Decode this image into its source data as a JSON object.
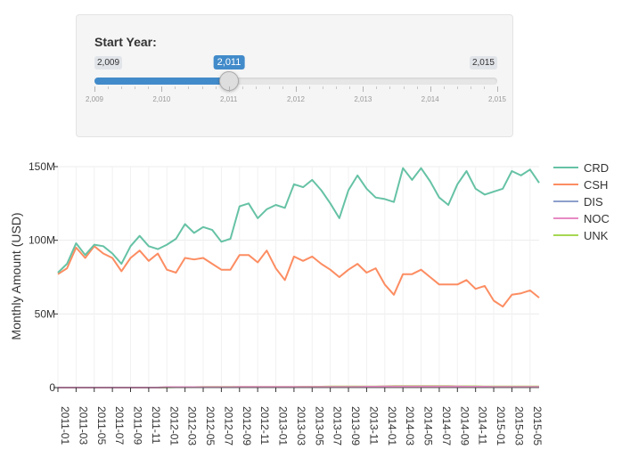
{
  "slider": {
    "label": "Start Year:",
    "min": 2009,
    "max": 2015,
    "value": 2011,
    "min_label": "2,009",
    "max_label": "2,015",
    "value_label": "2,011",
    "tick_labels": [
      "2,009",
      "2,010",
      "2,011",
      "2,012",
      "2,013",
      "2,014",
      "2,015"
    ],
    "accent_color": "#428bca"
  },
  "chart_data": {
    "type": "line",
    "ylabel": "Monthly Amount (USD)",
    "ylim": [
      0,
      150000000
    ],
    "y_ticks": [
      0,
      50000000,
      100000000,
      150000000
    ],
    "y_tick_labels": [
      "0",
      "50M",
      "100M",
      "150M"
    ],
    "grid": true,
    "legend_position": "right",
    "x": [
      "2011-01",
      "2011-02",
      "2011-03",
      "2011-04",
      "2011-05",
      "2011-06",
      "2011-07",
      "2011-08",
      "2011-09",
      "2011-10",
      "2011-11",
      "2011-12",
      "2012-01",
      "2012-02",
      "2012-03",
      "2012-04",
      "2012-05",
      "2012-06",
      "2012-07",
      "2012-08",
      "2012-09",
      "2012-10",
      "2012-11",
      "2012-12",
      "2013-01",
      "2013-02",
      "2013-03",
      "2013-04",
      "2013-05",
      "2013-06",
      "2013-07",
      "2013-08",
      "2013-09",
      "2013-10",
      "2013-11",
      "2013-12",
      "2014-01",
      "2014-02",
      "2014-03",
      "2014-04",
      "2014-05",
      "2014-06",
      "2014-07",
      "2014-08",
      "2014-09",
      "2014-10",
      "2014-11",
      "2014-12",
      "2015-01",
      "2015-02",
      "2015-03",
      "2015-04",
      "2015-05",
      "2015-06"
    ],
    "x_tick_labels": [
      "2011-01",
      "2011-03",
      "2011-05",
      "2011-07",
      "2011-09",
      "2011-11",
      "2012-01",
      "2012-03",
      "2012-05",
      "2012-07",
      "2012-09",
      "2012-11",
      "2013-01",
      "2013-03",
      "2013-05",
      "2013-07",
      "2013-09",
      "2013-11",
      "2014-01",
      "2014-03",
      "2014-05",
      "2014-07",
      "2014-09",
      "2014-11",
      "2015-01",
      "2015-03",
      "2015-05"
    ],
    "series": [
      {
        "name": "CRD",
        "color": "#66c2a5",
        "values": [
          78,
          84,
          98,
          90,
          97,
          96,
          91,
          84,
          96,
          103,
          96,
          94,
          97,
          101,
          111,
          105,
          109,
          107,
          99,
          101,
          123,
          125,
          115,
          121,
          124,
          122,
          138,
          136,
          141,
          134,
          125,
          115,
          134,
          144,
          135,
          129,
          128,
          126,
          149,
          141,
          149,
          140,
          129,
          124,
          138,
          147,
          135,
          131,
          133,
          135,
          147,
          144,
          148,
          139
        ]
      },
      {
        "name": "CSH",
        "color": "#fc8d62",
        "values": [
          77,
          81,
          95,
          88,
          96,
          91,
          88,
          79,
          88,
          93,
          86,
          91,
          80,
          78,
          88,
          87,
          88,
          84,
          80,
          80,
          90,
          90,
          85,
          93,
          81,
          73,
          89,
          86,
          89,
          84,
          80,
          75,
          80,
          84,
          78,
          81,
          70,
          63,
          77,
          77,
          80,
          75,
          70,
          70,
          70,
          73,
          67,
          69,
          59,
          55,
          63,
          64,
          66,
          61
        ]
      },
      {
        "name": "DIS",
        "color": "#8da0cb",
        "values": [
          0,
          0,
          0,
          0,
          0,
          0,
          0,
          0,
          0,
          0,
          0,
          0,
          0,
          0,
          0,
          0,
          0,
          0,
          0,
          0,
          0,
          0,
          0,
          0,
          0,
          0,
          0,
          0,
          0,
          0,
          0,
          0,
          0,
          0,
          0,
          0,
          0,
          0,
          0,
          0,
          0,
          0,
          0,
          0,
          0,
          0,
          0,
          0,
          0,
          0,
          0,
          0,
          0,
          0
        ]
      },
      {
        "name": "NOC",
        "color": "#e78ac3",
        "values": [
          0,
          0,
          0,
          0,
          0,
          0,
          0,
          0,
          0,
          0,
          0,
          0,
          0.3,
          0.3,
          0.3,
          0.3,
          0.3,
          0.3,
          0.3,
          0.3,
          0.4,
          0.4,
          0.4,
          0.4,
          0.4,
          0.4,
          0.4,
          0.4,
          0.4,
          0.4,
          0.4,
          0.5,
          0.5,
          0.5,
          0.6,
          0.6,
          0.7,
          0.7,
          0.8,
          0.8,
          0.8,
          0.8,
          0.7,
          0.7,
          0.7,
          0.6,
          0.6,
          0.6,
          0.5,
          0.5,
          0.5,
          0.5,
          0.5,
          0.5
        ]
      },
      {
        "name": "UNK",
        "color": "#a6d854",
        "values": [
          0,
          0,
          0,
          0,
          0,
          0,
          0,
          0,
          0,
          0,
          0,
          0,
          0.2,
          0.3,
          0.3,
          0.3,
          0.4,
          0.4,
          0.4,
          0.5,
          0.5,
          0.5,
          0.5,
          0.5,
          0.5,
          0.5,
          0.5,
          0.6,
          0.6,
          0.6,
          0.7,
          0.7,
          0.7,
          0.8,
          0.8,
          0.8,
          0.9,
          1.0,
          1.1,
          1.1,
          1.1,
          1.0,
          1.0,
          1.0,
          0.9,
          0.9,
          0.9,
          0.8,
          0.8,
          0.8,
          0.8,
          0.8,
          0.8,
          0.8
        ]
      }
    ],
    "value_units": "millions USD"
  }
}
